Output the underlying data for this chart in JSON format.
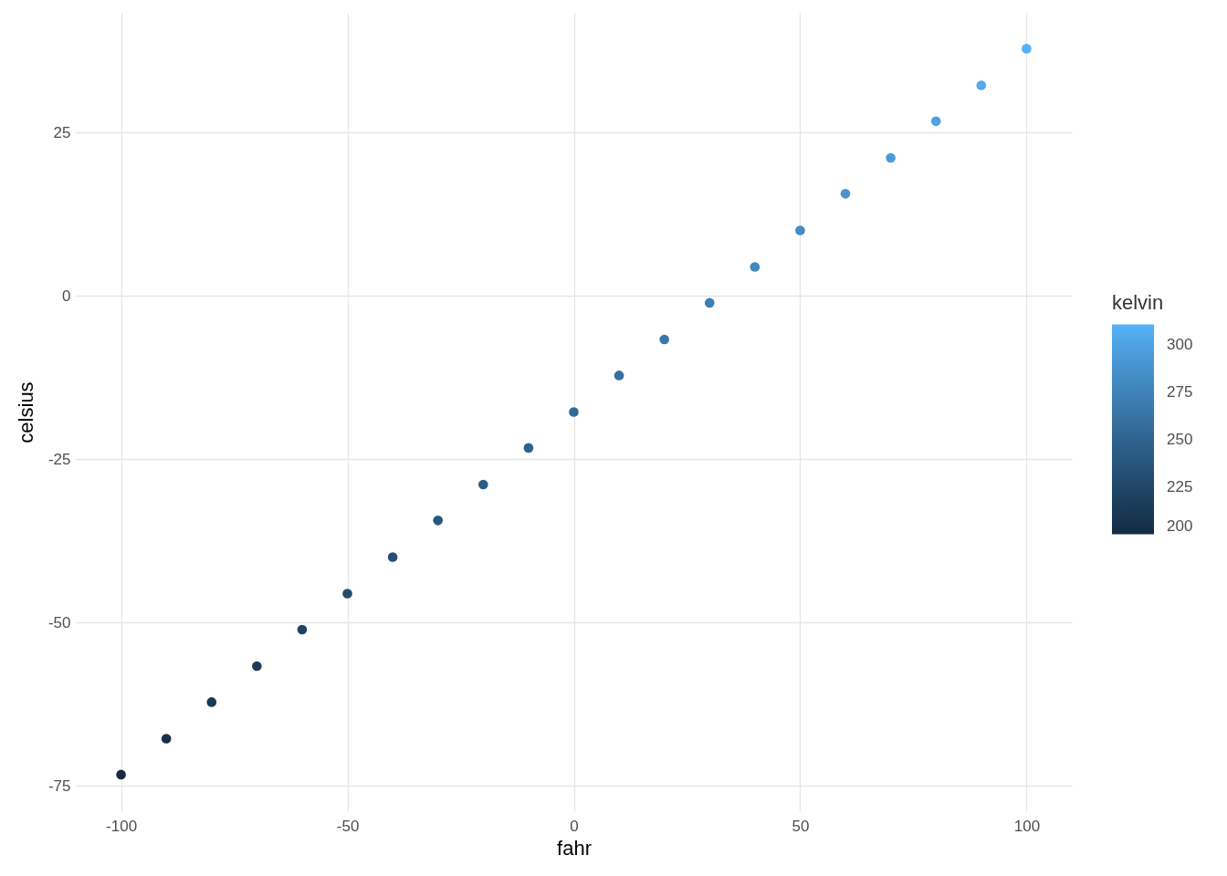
{
  "chart_data": {
    "type": "scatter",
    "xlabel": "fahr",
    "ylabel": "celsius",
    "legend_title": "kelvin",
    "x": [
      -100,
      -90,
      -80,
      -70,
      -60,
      -50,
      -40,
      -30,
      -20,
      -10,
      0,
      10,
      20,
      30,
      40,
      50,
      60,
      70,
      80,
      90,
      100
    ],
    "values": [
      -73.3,
      -67.8,
      -62.2,
      -56.7,
      -51.1,
      -45.6,
      -40,
      -34.4,
      -28.9,
      -23.3,
      -17.8,
      -12.2,
      -6.7,
      -1.1,
      4.4,
      10,
      15.6,
      21.1,
      26.7,
      32.2,
      37.8
    ],
    "cvalues": [
      200,
      205,
      211,
      216,
      222,
      228,
      233,
      239,
      244,
      250,
      255,
      261,
      266,
      272,
      278,
      283,
      289,
      294,
      300,
      305,
      311
    ],
    "clim": [
      200,
      311
    ],
    "cticks": [
      200,
      225,
      250,
      275,
      300
    ],
    "xlim": [
      -110,
      110
    ],
    "ylim": [
      -78.9,
      43.3
    ],
    "xticks": [
      -100,
      -50,
      0,
      50,
      100
    ],
    "yticks": [
      -75,
      -50,
      -25,
      0,
      25
    ],
    "grid": true,
    "marker": "circle"
  }
}
